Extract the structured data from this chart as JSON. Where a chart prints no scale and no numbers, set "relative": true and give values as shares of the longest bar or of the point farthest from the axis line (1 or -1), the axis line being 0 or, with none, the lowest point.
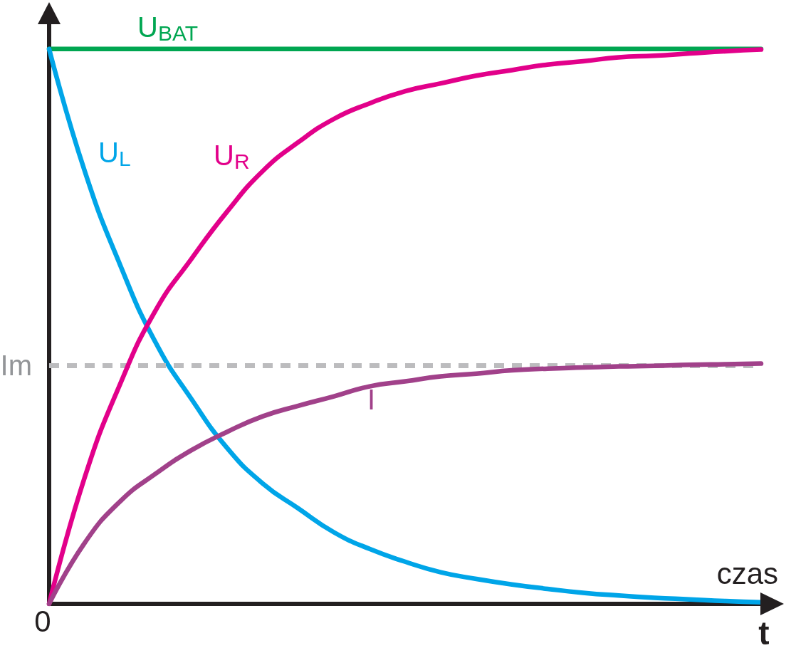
{
  "chart_data": {
    "type": "line",
    "relative": true,
    "marker": "none",
    "xlabel": "czas",
    "categories": [
      null,
      null,
      null,
      null,
      null,
      null,
      null,
      null,
      null,
      null,
      null,
      null,
      null,
      null,
      null,
      null,
      null,
      null,
      null,
      null,
      null
    ],
    "series": [
      {
        "name": "U$_{BAT}$",
        "color": "#00a651",
        "values": [
          1,
          1,
          1,
          1,
          1,
          1,
          1,
          1,
          1,
          1,
          1,
          1,
          1,
          1,
          1,
          1,
          1,
          1,
          1,
          1,
          1
        ]
      },
      {
        "name": "U$_{L}$",
        "color": "#00a5e8",
        "values": [
          1,
          0.78,
          0.61,
          0.47,
          0.369,
          0.281,
          0.217,
          0.172,
          0.129,
          0.099,
          0.076,
          0.057,
          0.045,
          0.035,
          0.027,
          0.02,
          0.015,
          0.011,
          0.008,
          0.005,
          0.003
        ]
      },
      {
        "name": "U$_{R}$",
        "color": "#e2008a",
        "values": [
          0,
          0.228,
          0.397,
          0.53,
          0.622,
          0.707,
          0.78,
          0.832,
          0.874,
          0.902,
          0.924,
          0.938,
          0.952,
          0.962,
          0.972,
          0.978,
          0.985,
          0.988,
          0.992,
          0.996,
          0.999
        ]
      },
      {
        "name": "I",
        "color": "#a1418a",
        "values": [
          0,
          0.11,
          0.185,
          0.235,
          0.277,
          0.31,
          0.338,
          0.357,
          0.374,
          0.392,
          0.401,
          0.41,
          0.415,
          0.421,
          0.424,
          0.426,
          0.428,
          0.429,
          0.431,
          0.432,
          0.433
        ]
      }
    ],
    "ref_lines": [
      {
        "axis": "y",
        "value": 0.433,
        "label": "Im",
        "color": "#bcbcbe",
        "line_style": "dashed"
      }
    ],
    "annotations": [
      "0",
      "t"
    ]
  }
}
